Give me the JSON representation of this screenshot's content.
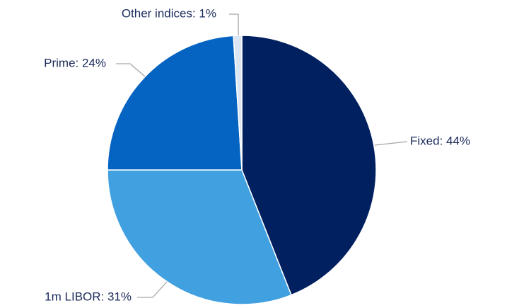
{
  "chart_data": {
    "type": "pie",
    "values": [
      44,
      31,
      24,
      1
    ],
    "value_labels": [
      "Fixed: 44%",
      "1m LIBOR: 31%",
      "Prime: 24%",
      "Other indices: 1%"
    ],
    "colors": [
      "#002060",
      "#41a0e0",
      "#0563c1",
      "#dce6f2"
    ]
  }
}
